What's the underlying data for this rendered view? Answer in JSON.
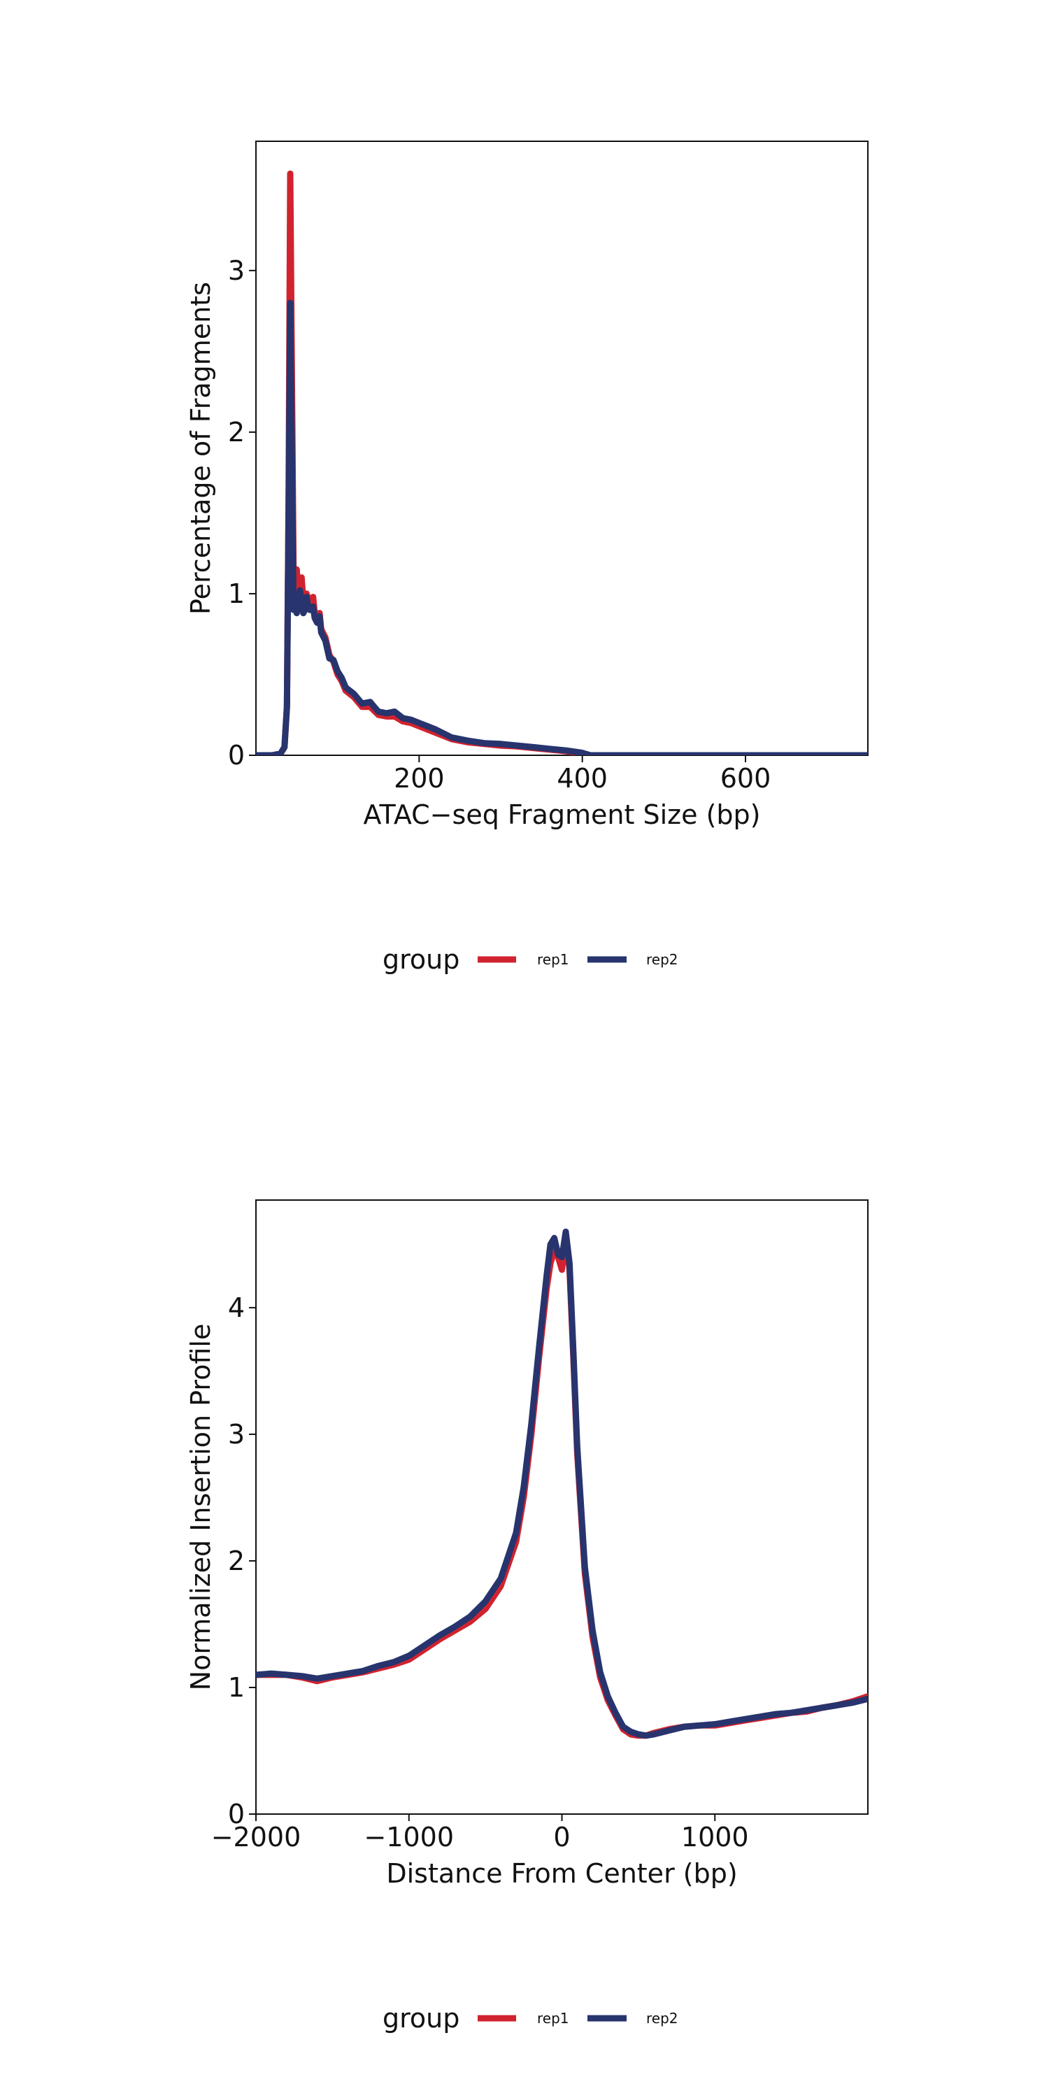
{
  "colors": {
    "rep1": "#d1232f",
    "rep2": "#27346e"
  },
  "chart_data": [
    {
      "type": "line",
      "xlabel": "ATAC−seq Fragment Size (bp)",
      "ylabel": "Percentage of Fragments",
      "xlim": [
        0,
        750
      ],
      "ylim": [
        0,
        3.8
      ],
      "x_ticks": [
        {
          "value": 200,
          "label": "200"
        },
        {
          "value": 400,
          "label": "400"
        },
        {
          "value": 600,
          "label": "600"
        }
      ],
      "y_ticks": [
        {
          "value": 0,
          "label": "0"
        },
        {
          "value": 1,
          "label": "1"
        },
        {
          "value": 2,
          "label": "2"
        },
        {
          "value": 3,
          "label": "3"
        }
      ],
      "legend": {
        "title": "group",
        "position": "bottom"
      },
      "series": [
        {
          "name": "rep1",
          "x": [
            0,
            20,
            30,
            35,
            38,
            40,
            42,
            44,
            46,
            48,
            50,
            52,
            54,
            56,
            58,
            60,
            62,
            64,
            66,
            68,
            70,
            72,
            75,
            78,
            80,
            85,
            90,
            95,
            100,
            105,
            110,
            120,
            130,
            140,
            150,
            160,
            170,
            180,
            190,
            200,
            220,
            240,
            260,
            280,
            300,
            320,
            340,
            360,
            380,
            400,
            410,
            450,
            500,
            600,
            700,
            750
          ],
          "y": [
            0,
            0,
            0.01,
            0.05,
            0.3,
            1.6,
            3.6,
            2.4,
            1.15,
            0.95,
            1.15,
            1.0,
            1.08,
            1.1,
            0.95,
            0.9,
            1.0,
            0.97,
            0.92,
            0.95,
            0.98,
            0.88,
            0.85,
            0.88,
            0.78,
            0.73,
            0.62,
            0.58,
            0.5,
            0.46,
            0.4,
            0.36,
            0.3,
            0.3,
            0.25,
            0.24,
            0.24,
            0.21,
            0.2,
            0.18,
            0.14,
            0.1,
            0.08,
            0.07,
            0.06,
            0.055,
            0.045,
            0.035,
            0.025,
            0.012,
            0,
            0,
            0,
            0,
            0,
            0
          ]
        },
        {
          "name": "rep2",
          "x": [
            0,
            20,
            30,
            35,
            38,
            40,
            42,
            44,
            46,
            48,
            50,
            52,
            54,
            56,
            58,
            60,
            62,
            64,
            66,
            68,
            70,
            72,
            75,
            78,
            80,
            85,
            90,
            95,
            100,
            105,
            110,
            120,
            130,
            140,
            150,
            160,
            170,
            180,
            190,
            200,
            220,
            240,
            260,
            280,
            300,
            320,
            340,
            360,
            380,
            400,
            410,
            450,
            500,
            600,
            700,
            750
          ],
          "y": [
            0,
            0,
            0.01,
            0.05,
            0.3,
            1.5,
            2.8,
            1.9,
            0.9,
            1.0,
            0.88,
            0.95,
            1.02,
            0.95,
            0.88,
            0.9,
            0.98,
            0.92,
            0.9,
            0.9,
            0.92,
            0.85,
            0.82,
            0.86,
            0.76,
            0.71,
            0.6,
            0.59,
            0.52,
            0.48,
            0.42,
            0.38,
            0.32,
            0.33,
            0.27,
            0.26,
            0.27,
            0.23,
            0.22,
            0.2,
            0.16,
            0.11,
            0.09,
            0.075,
            0.07,
            0.06,
            0.05,
            0.04,
            0.03,
            0.015,
            0,
            0,
            0,
            0,
            0,
            0
          ]
        }
      ]
    },
    {
      "type": "line",
      "xlabel": "Distance From Center (bp)",
      "ylabel": "Normalized Insertion Profile",
      "xlim": [
        -2000,
        2000
      ],
      "ylim": [
        0,
        4.85
      ],
      "x_ticks": [
        {
          "value": -2000,
          "label": "−2000"
        },
        {
          "value": -1000,
          "label": "−1000"
        },
        {
          "value": 0,
          "label": "0"
        },
        {
          "value": 1000,
          "label": "1000"
        }
      ],
      "y_ticks": [
        {
          "value": 0,
          "label": "0"
        },
        {
          "value": 1,
          "label": "1"
        },
        {
          "value": 2,
          "label": "2"
        },
        {
          "value": 3,
          "label": "3"
        },
        {
          "value": 4,
          "label": "4"
        }
      ],
      "legend": {
        "title": "group",
        "position": "bottom"
      },
      "series": [
        {
          "name": "rep1",
          "x": [
            -2000,
            -1900,
            -1800,
            -1700,
            -1600,
            -1500,
            -1400,
            -1300,
            -1200,
            -1100,
            -1000,
            -900,
            -800,
            -700,
            -600,
            -500,
            -400,
            -300,
            -250,
            -200,
            -150,
            -100,
            -75,
            -50,
            -25,
            0,
            25,
            50,
            75,
            100,
            150,
            200,
            250,
            300,
            350,
            400,
            450,
            500,
            550,
            600,
            700,
            800,
            900,
            1000,
            1100,
            1200,
            1300,
            1400,
            1500,
            1600,
            1700,
            1800,
            1900,
            2000
          ],
          "y": [
            1.1,
            1.1,
            1.1,
            1.08,
            1.05,
            1.08,
            1.1,
            1.12,
            1.15,
            1.18,
            1.22,
            1.3,
            1.38,
            1.45,
            1.52,
            1.62,
            1.8,
            2.15,
            2.5,
            3.0,
            3.6,
            4.15,
            4.35,
            4.45,
            4.4,
            4.3,
            4.55,
            4.3,
            3.6,
            2.85,
            1.9,
            1.4,
            1.08,
            0.9,
            0.78,
            0.67,
            0.63,
            0.62,
            0.62,
            0.64,
            0.67,
            0.69,
            0.7,
            0.7,
            0.72,
            0.74,
            0.76,
            0.78,
            0.8,
            0.81,
            0.84,
            0.86,
            0.89,
            0.93
          ]
        },
        {
          "name": "rep2",
          "x": [
            -2000,
            -1900,
            -1800,
            -1700,
            -1600,
            -1500,
            -1400,
            -1300,
            -1200,
            -1100,
            -1000,
            -900,
            -800,
            -700,
            -600,
            -500,
            -400,
            -300,
            -250,
            -200,
            -150,
            -100,
            -75,
            -50,
            -25,
            0,
            25,
            50,
            75,
            100,
            150,
            200,
            250,
            300,
            350,
            400,
            450,
            500,
            550,
            600,
            700,
            800,
            900,
            1000,
            1100,
            1200,
            1300,
            1400,
            1500,
            1600,
            1700,
            1800,
            1900,
            2000
          ],
          "y": [
            1.1,
            1.11,
            1.1,
            1.09,
            1.07,
            1.09,
            1.11,
            1.13,
            1.17,
            1.2,
            1.25,
            1.33,
            1.41,
            1.48,
            1.56,
            1.68,
            1.86,
            2.22,
            2.58,
            3.08,
            3.68,
            4.25,
            4.5,
            4.55,
            4.42,
            4.4,
            4.6,
            4.35,
            3.65,
            2.9,
            1.95,
            1.45,
            1.12,
            0.93,
            0.8,
            0.69,
            0.65,
            0.63,
            0.62,
            0.63,
            0.66,
            0.69,
            0.7,
            0.71,
            0.73,
            0.75,
            0.77,
            0.79,
            0.8,
            0.82,
            0.84,
            0.86,
            0.88,
            0.91
          ]
        }
      ]
    }
  ]
}
